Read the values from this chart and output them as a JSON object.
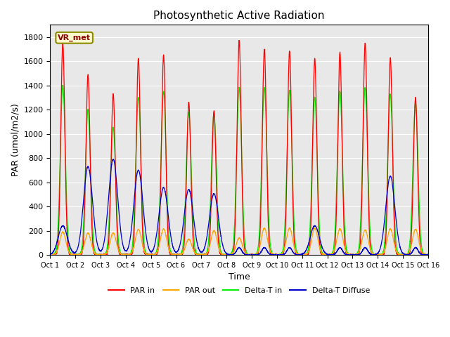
{
  "title": "Photosynthetic Active Radiation",
  "ylabel": "PAR (umol/m2/s)",
  "xlabel": "Time",
  "label_box": "VR_met",
  "ylim": [
    0,
    1900
  ],
  "yticks": [
    0,
    200,
    400,
    600,
    800,
    1000,
    1200,
    1400,
    1600,
    1800
  ],
  "xtick_labels": [
    "Oct 1",
    "Oct 2",
    "Oct 3",
    "Oct 4",
    "Oct 5",
    "Oct 6",
    "Oct 7",
    "Oct 8",
    "Oct 9",
    "Oct 10",
    "Oct 11",
    "Oct 12",
    "Oct 13",
    "Oct 14",
    "Oct 15",
    "Oct 16"
  ],
  "colors": {
    "PAR_in": "#FF0000",
    "PAR_out": "#FFA500",
    "Delta_T_in": "#00EE00",
    "Delta_T_Diffuse": "#0000CC"
  },
  "legend_labels": [
    "PAR in",
    "PAR out",
    "Delta-T in",
    "Delta-T Diffuse"
  ],
  "background_color": "#E8E8E8",
  "n_days": 15,
  "peaks_PAR_in": [
    1750,
    1490,
    1330,
    1620,
    1650,
    1260,
    1190,
    1770,
    1700,
    1680,
    1620,
    1670,
    1750,
    1630,
    1300
  ],
  "peaks_PAR_out": [
    190,
    180,
    180,
    210,
    215,
    130,
    200,
    140,
    220,
    220,
    220,
    215,
    205,
    215,
    210
  ],
  "peaks_Delta_T_in": [
    1400,
    1200,
    1050,
    1300,
    1350,
    1175,
    1175,
    1380,
    1380,
    1360,
    1300,
    1350,
    1380,
    1325,
    1250
  ],
  "peaks_Delta_T_Diffuse": [
    240,
    730,
    790,
    700,
    555,
    540,
    505,
    60,
    60,
    60,
    240,
    60,
    60,
    650,
    60
  ],
  "hw_PAR_in": 0.08,
  "hw_PAR_out": 0.12,
  "hw_Delta_T_in": 0.1,
  "hw_Delta_T_Diffuse_narrow": 0.1,
  "hw_Delta_T_Diffuse_broad": 0.18
}
